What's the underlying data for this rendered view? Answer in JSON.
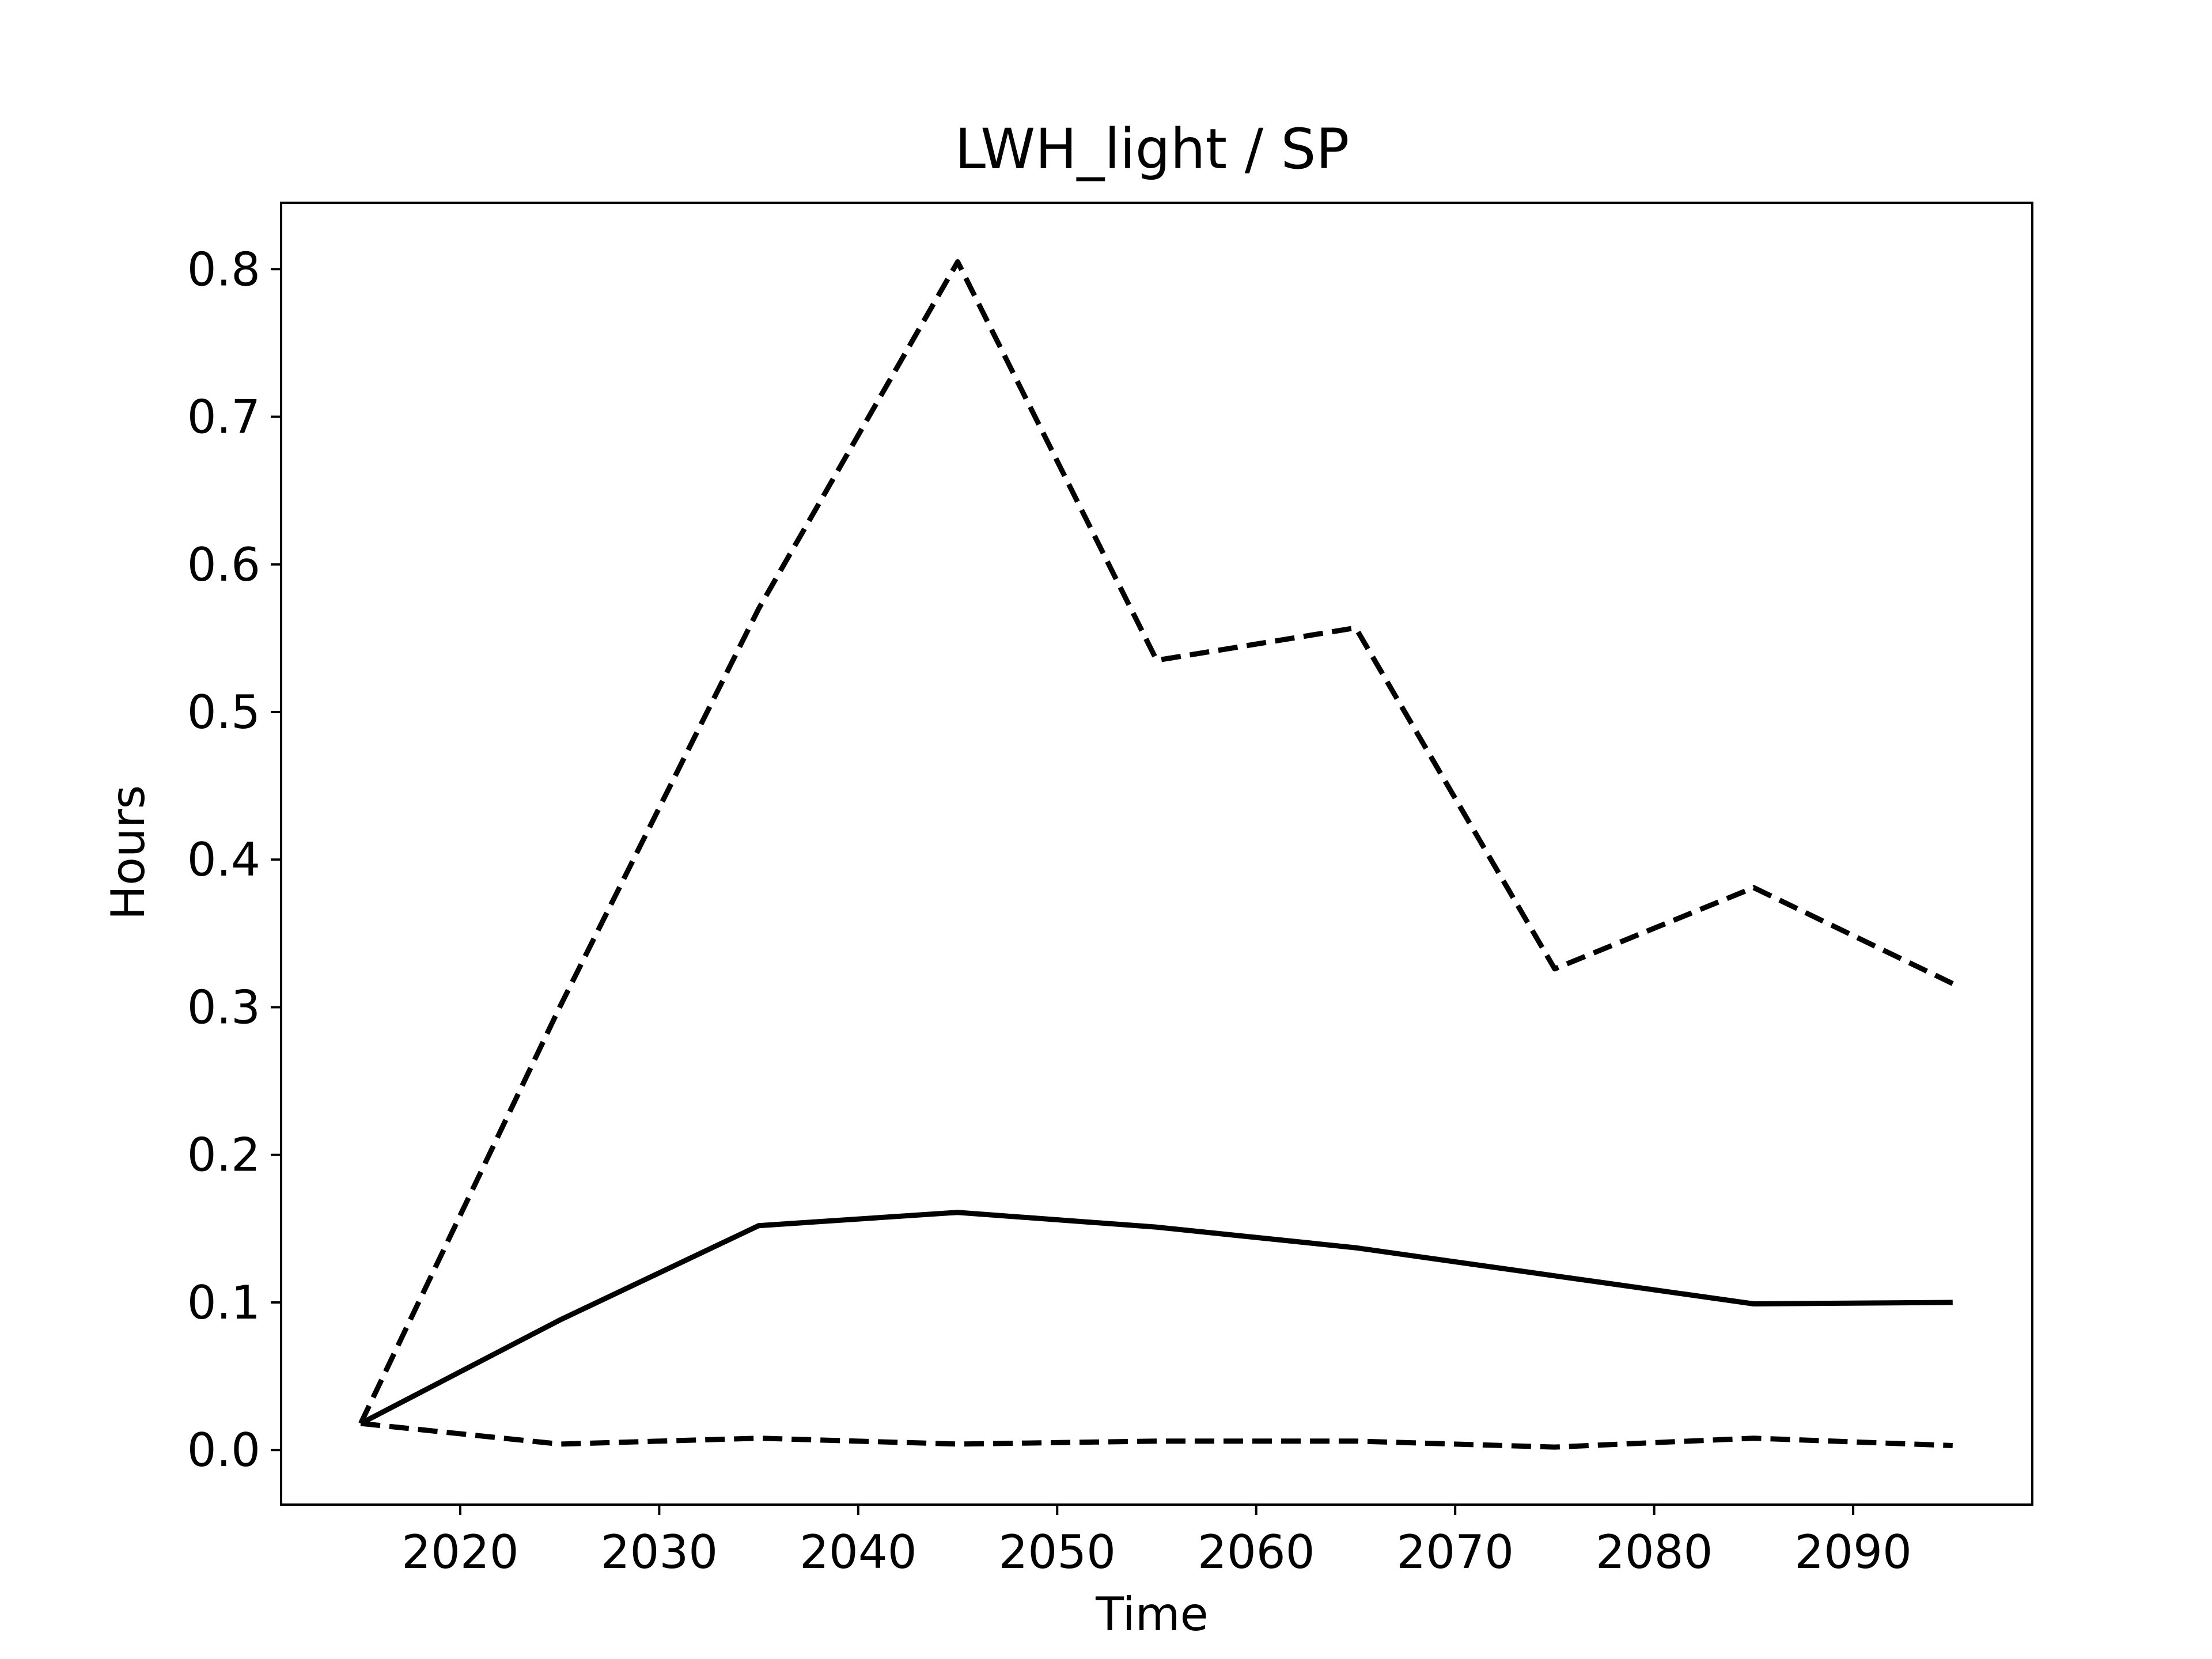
{
  "chart_data": {
    "type": "line",
    "title": "LWH_light / SP",
    "xlabel": "Time",
    "ylabel": "Hours",
    "xlim": [
      2011,
      2099
    ],
    "ylim": [
      -0.037,
      0.845
    ],
    "xticks": [
      2020,
      2030,
      2040,
      2050,
      2060,
      2070,
      2080,
      2090
    ],
    "yticks": [
      0.0,
      0.1,
      0.2,
      0.3,
      0.4,
      0.5,
      0.6,
      0.7,
      0.8
    ],
    "grid": false,
    "legend": false,
    "x": [
      2015,
      2025,
      2035,
      2045,
      2055,
      2065,
      2075,
      2085,
      2095
    ],
    "series": [
      {
        "style": "solid",
        "color": "#000000",
        "values": [
          0.018,
          0.088,
          0.152,
          0.161,
          0.151,
          0.137,
          0.118,
          0.099,
          0.1
        ]
      },
      {
        "style": "dashed",
        "color": "#000000",
        "values": [
          0.018,
          0.3,
          0.57,
          0.805,
          0.535,
          0.557,
          0.326,
          0.381,
          0.316
        ]
      },
      {
        "style": "dashed",
        "color": "#000000",
        "values": [
          0.018,
          0.004,
          0.008,
          0.004,
          0.006,
          0.006,
          0.002,
          0.008,
          0.003
        ]
      }
    ]
  }
}
